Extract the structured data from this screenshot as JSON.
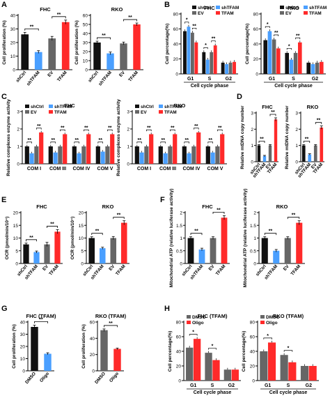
{
  "colors": {
    "shCtrl": "#111111",
    "shTFAM": "#4a9fff",
    "EV": "#666666",
    "TFAM": "#ff2a2a",
    "DMSO": "#666666",
    "Oligo": "#ff2a2a"
  },
  "sig": {
    "double": "**",
    "single": "*"
  },
  "charts": [
    {
      "panel": "A",
      "title": "FHC",
      "type": "bar",
      "ylabel": "Cell proliferation (%)",
      "ylim": [
        0,
        40
      ],
      "yticks": [
        0,
        10,
        20,
        30,
        40
      ],
      "categories": [
        "shCtrl",
        "shTFAM",
        "EV",
        "TFAM"
      ],
      "values": [
        26,
        13,
        23,
        35
      ],
      "errors": [
        1.5,
        1,
        1.5,
        1.5
      ],
      "colors": [
        "#111111",
        "#4a9fff",
        "#666666",
        "#ff2a2a"
      ],
      "sig": [
        [
          0,
          1,
          "**"
        ],
        [
          2,
          3,
          "**"
        ]
      ]
    },
    {
      "panel": "",
      "title": "RKO",
      "type": "bar",
      "ylabel": "Cell proliferation (%)",
      "ylim": [
        0,
        60
      ],
      "yticks": [
        0,
        10,
        20,
        30,
        40,
        50,
        60
      ],
      "categories": [
        "shCtrl",
        "shTFAM",
        "EV",
        "TFAM"
      ],
      "values": [
        30,
        18,
        29,
        50
      ],
      "errors": [
        1.5,
        1.5,
        1.5,
        1.5
      ],
      "colors": [
        "#111111",
        "#4a9fff",
        "#666666",
        "#ff2a2a"
      ],
      "sig": [
        [
          0,
          1,
          "**"
        ],
        [
          2,
          3,
          "**"
        ]
      ]
    },
    {
      "panel": "B",
      "title": "FHC",
      "type": "grouped_bar",
      "ylabel": "Cell percentage(%)",
      "xlabel": "Cell cycle phase",
      "ylim": [
        0,
        80
      ],
      "yticks": [
        0,
        20,
        40,
        60,
        80
      ],
      "categories": [
        "G1",
        "S",
        "G2"
      ],
      "series": [
        {
          "name": "shCtrl",
          "values": [
            57,
            29,
            15
          ],
          "color": "#111111"
        },
        {
          "name": "shTFAM",
          "values": [
            63,
            19,
            13
          ],
          "color": "#4a9fff"
        },
        {
          "name": "EV",
          "values": [
            55,
            29,
            15
          ],
          "color": "#666666"
        },
        {
          "name": "TFAM",
          "values": [
            42,
            38,
            16
          ],
          "color": "#ff2a2a"
        }
      ],
      "sig": [
        [
          0,
          0,
          1,
          "*"
        ],
        [
          0,
          2,
          3,
          "**"
        ],
        [
          1,
          0,
          1,
          "*"
        ],
        [
          1,
          2,
          3,
          "**"
        ]
      ],
      "legend": "top-right"
    },
    {
      "panel": "",
      "title": "RKO",
      "type": "grouped_bar",
      "ylabel": "Cell percentage(%)",
      "xlabel": "Cell cycle phase",
      "ylim": [
        0,
        80
      ],
      "yticks": [
        0,
        20,
        40,
        60,
        80
      ],
      "categories": [
        "G1",
        "S",
        "G2"
      ],
      "series": [
        {
          "name": "shCtrl",
          "values": [
            45,
            28,
            15
          ],
          "color": "#111111"
        },
        {
          "name": "shTFAM",
          "values": [
            57,
            19,
            13
          ],
          "color": "#4a9fff"
        },
        {
          "name": "EV",
          "values": [
            46,
            28,
            15
          ],
          "color": "#666666"
        },
        {
          "name": "TFAM",
          "values": [
            34,
            42,
            16
          ],
          "color": "#ff2a2a"
        }
      ],
      "sig": [
        [
          0,
          0,
          1,
          "*"
        ],
        [
          0,
          2,
          3,
          "**"
        ],
        [
          1,
          0,
          1,
          "*"
        ],
        [
          1,
          2,
          3,
          "**"
        ]
      ],
      "legend": "top-right"
    },
    {
      "panel": "C",
      "title": "FHC",
      "type": "grouped_bar",
      "ylabel": "Relative complexes enzyme activity",
      "ylim": [
        0,
        3
      ],
      "yticks": [
        0,
        1,
        2,
        3
      ],
      "categories": [
        "COM I",
        "COM III",
        "COM IV",
        "COM V"
      ],
      "series": [
        {
          "name": "shCtrl",
          "values": [
            1,
            1,
            1,
            1
          ],
          "color": "#111111"
        },
        {
          "name": "shTFAM",
          "values": [
            0.6,
            0.65,
            0.6,
            0.7
          ],
          "color": "#4a9fff"
        },
        {
          "name": "EV",
          "values": [
            1,
            1,
            1,
            1
          ],
          "color": "#666666"
        },
        {
          "name": "TFAM",
          "values": [
            1.8,
            1.7,
            1.7,
            1.7
          ],
          "color": "#ff2a2a"
        }
      ],
      "sig": [
        [
          0,
          0,
          1,
          "**"
        ],
        [
          0,
          2,
          3,
          "**"
        ],
        [
          1,
          0,
          1,
          "**"
        ],
        [
          1,
          2,
          3,
          "**"
        ],
        [
          2,
          0,
          1,
          "**"
        ],
        [
          2,
          2,
          3,
          "**"
        ],
        [
          3,
          0,
          1,
          "**"
        ],
        [
          3,
          2,
          3,
          "**"
        ]
      ],
      "legend": "top-left"
    },
    {
      "panel": "",
      "title": "RKO",
      "type": "grouped_bar",
      "ylabel": "Relative complexes enzyme activity",
      "ylim": [
        0,
        3
      ],
      "yticks": [
        0,
        1,
        2,
        3
      ],
      "categories": [
        "COM I",
        "COM III",
        "COM IV",
        "COM V"
      ],
      "series": [
        {
          "name": "shCtrl",
          "values": [
            1,
            1,
            1,
            1
          ],
          "color": "#111111"
        },
        {
          "name": "shTFAM",
          "values": [
            0.65,
            0.6,
            0.6,
            0.65
          ],
          "color": "#4a9fff"
        },
        {
          "name": "EV",
          "values": [
            1,
            1,
            1,
            1
          ],
          "color": "#666666"
        },
        {
          "name": "TFAM",
          "values": [
            1.7,
            1.7,
            1.8,
            1.7
          ],
          "color": "#ff2a2a"
        }
      ],
      "sig": [
        [
          0,
          0,
          1,
          "**"
        ],
        [
          0,
          2,
          3,
          "**"
        ],
        [
          1,
          0,
          1,
          "**"
        ],
        [
          1,
          2,
          3,
          "**"
        ],
        [
          2,
          0,
          1,
          "**"
        ],
        [
          2,
          2,
          3,
          "**"
        ],
        [
          3,
          0,
          1,
          "**"
        ],
        [
          3,
          2,
          3,
          "**"
        ]
      ],
      "legend": "top-left"
    },
    {
      "panel": "D",
      "title": "FHC",
      "type": "bar",
      "ylabel": "Relative mtDNA copy number",
      "ylim": [
        0,
        3
      ],
      "yticks": [
        0,
        1,
        2,
        3
      ],
      "categories": [
        "shCtrl",
        "shTFAM",
        "EV",
        "TFAM"
      ],
      "values": [
        1,
        0.35,
        1,
        2.6
      ],
      "errors": [
        0.05,
        0.04,
        0.05,
        0.1
      ],
      "colors": [
        "#111111",
        "#4a9fff",
        "#666666",
        "#ff2a2a"
      ],
      "sig": [
        [
          0,
          1,
          "**"
        ],
        [
          2,
          3,
          "**"
        ]
      ]
    },
    {
      "panel": "",
      "title": "RKO",
      "type": "bar",
      "ylabel": "Relative mtDNA copy number",
      "ylim": [
        0,
        3
      ],
      "yticks": [
        0,
        1,
        2,
        3
      ],
      "categories": [
        "shCtrl",
        "shTFAM",
        "EV",
        "TFAM"
      ],
      "values": [
        1,
        0.45,
        1,
        2.1
      ],
      "errors": [
        0.05,
        0.04,
        0.05,
        0.1
      ],
      "colors": [
        "#111111",
        "#4a9fff",
        "#666666",
        "#ff2a2a"
      ],
      "sig": [
        [
          0,
          1,
          "**"
        ],
        [
          2,
          3,
          "**"
        ]
      ]
    },
    {
      "panel": "E",
      "title": "FHC",
      "type": "bar",
      "ylabel": "OCR (pmol/min/10⁴)",
      "ylim": [
        0,
        20
      ],
      "yticks": [
        0,
        5,
        10,
        15,
        20
      ],
      "categories": [
        "shCtrl",
        "shTFAM",
        "EV",
        "TFAM"
      ],
      "values": [
        7.5,
        4.5,
        7.5,
        12.5
      ],
      "errors": [
        0.5,
        0.4,
        0.8,
        0.8
      ],
      "colors": [
        "#111111",
        "#4a9fff",
        "#666666",
        "#ff2a2a"
      ],
      "sig": [
        [
          0,
          1,
          "**"
        ],
        [
          2,
          3,
          "**"
        ]
      ]
    },
    {
      "panel": "",
      "title": "RKO",
      "type": "bar",
      "ylabel": "OCR (pmol/min/10⁴)",
      "ylim": [
        0,
        20
      ],
      "yticks": [
        0,
        5,
        10,
        15,
        20
      ],
      "categories": [
        "shCtrl",
        "shTFAM",
        "EV",
        "TFAM"
      ],
      "values": [
        10,
        6,
        10,
        16
      ],
      "errors": [
        0.5,
        0.4,
        0.6,
        0.8
      ],
      "colors": [
        "#111111",
        "#4a9fff",
        "#666666",
        "#ff2a2a"
      ],
      "sig": [
        [
          0,
          1,
          "**"
        ],
        [
          2,
          3,
          "**"
        ]
      ]
    },
    {
      "panel": "F",
      "title": "FHC",
      "type": "bar",
      "ylabel": "Mitochondrial ATP (relative luciferase activity)",
      "ylim": [
        0,
        2.0
      ],
      "yticks": [
        0,
        0.5,
        1,
        1.5,
        2
      ],
      "categories": [
        "shCtrl",
        "shTFAM",
        "EV",
        "TFAM"
      ],
      "values": [
        1,
        0.55,
        1,
        1.8
      ],
      "errors": [
        0.05,
        0.05,
        0.05,
        0.08
      ],
      "colors": [
        "#111111",
        "#4a9fff",
        "#666666",
        "#ff2a2a"
      ],
      "sig": [
        [
          0,
          1,
          "**"
        ],
        [
          2,
          3,
          "**"
        ]
      ]
    },
    {
      "panel": "",
      "title": "RKO",
      "type": "bar",
      "ylabel": "Mitochondrial ATP (relative luciferase activity)",
      "ylim": [
        0,
        2.0
      ],
      "yticks": [
        0,
        0.5,
        1,
        1.5,
        2
      ],
      "categories": [
        "shCtrl",
        "shTFAM",
        "EV",
        "TFAM"
      ],
      "values": [
        1,
        0.5,
        1,
        1.6
      ],
      "errors": [
        0.05,
        0.05,
        0.05,
        0.08
      ],
      "colors": [
        "#111111",
        "#4a9fff",
        "#666666",
        "#ff2a2a"
      ],
      "sig": [
        [
          0,
          1,
          "**"
        ],
        [
          2,
          3,
          "**"
        ]
      ]
    },
    {
      "panel": "G",
      "title": "FHC (TFAM)",
      "type": "bar",
      "ylabel": "Cell proliferation (%)",
      "ylim": [
        0,
        40
      ],
      "yticks": [
        0,
        10,
        20,
        30,
        40
      ],
      "categories": [
        "DMSO",
        "Oligo"
      ],
      "values": [
        36,
        14
      ],
      "errors": [
        1.5,
        0.8
      ],
      "colors": [
        "#111111",
        "#4a9fff"
      ],
      "sig": [
        [
          0,
          1,
          "**"
        ]
      ]
    },
    {
      "panel": "",
      "title": "RKO (TFAM)",
      "type": "bar",
      "ylabel": "Cell proliferation (%)",
      "ylim": [
        0,
        60
      ],
      "yticks": [
        0,
        20,
        40,
        60
      ],
      "categories": [
        "DMSO",
        "Oligo"
      ],
      "values": [
        50,
        27
      ],
      "errors": [
        1.5,
        1
      ],
      "colors": [
        "#666666",
        "#ff2a2a"
      ],
      "sig": [
        [
          0,
          1,
          "**"
        ]
      ]
    },
    {
      "panel": "H",
      "title": "FHC (TFAM)",
      "type": "grouped_bar",
      "ylabel": "Cell percentage(%)",
      "xlabel": "Cell cycle phase",
      "ylim": [
        0,
        80
      ],
      "yticks": [
        0,
        20,
        40,
        60,
        80
      ],
      "categories": [
        "G1",
        "S",
        "G2"
      ],
      "series": [
        {
          "name": "DMSO",
          "values": [
            45,
            38,
            15
          ],
          "color": "#666666"
        },
        {
          "name": "Oligo",
          "values": [
            57,
            28,
            15
          ],
          "color": "#ff2a2a"
        }
      ],
      "sig": [
        [
          0,
          0,
          1,
          "*"
        ],
        [
          1,
          0,
          1,
          "*"
        ]
      ],
      "legend": "top-left"
    },
    {
      "panel": "",
      "title": "RKO (TFAM)",
      "type": "grouped_bar",
      "ylabel": "Cell percentage(%)",
      "xlabel": "Cell cycle phase",
      "ylim": [
        0,
        80
      ],
      "yticks": [
        0,
        20,
        40,
        60,
        80
      ],
      "categories": [
        "G1",
        "S",
        "G2"
      ],
      "series": [
        {
          "name": "DMSO",
          "values": [
            40,
            35,
            20
          ],
          "color": "#666666"
        },
        {
          "name": "Oligo",
          "values": [
            52,
            25,
            20
          ],
          "color": "#ff2a2a"
        }
      ],
      "sig": [
        [
          0,
          0,
          1,
          "*"
        ],
        [
          1,
          0,
          1,
          "*"
        ]
      ],
      "legend": "top-left"
    }
  ]
}
